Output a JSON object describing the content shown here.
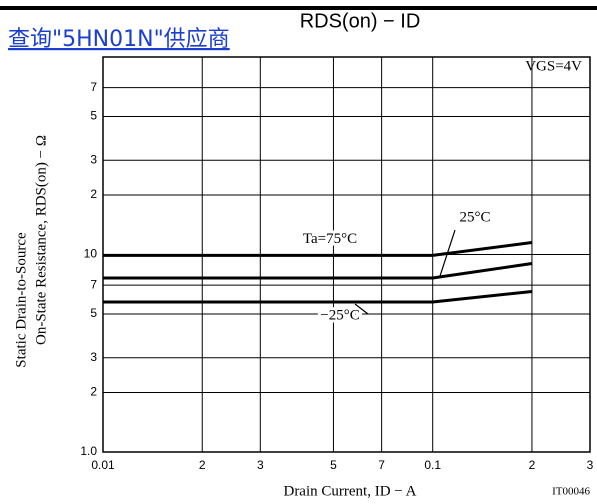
{
  "chart_data": {
    "type": "line",
    "title": "RDS(on) − ID",
    "overlay_link": "查询\"5HN01N\"供应商",
    "condition": "VGS=4V",
    "x_label": "Drain Current, ID − A",
    "y_label": [
      "Static Drain-to-Source",
      "On-State Resistance, RDS(on) − Ω"
    ],
    "figure_code": "IT00046",
    "log_x": true,
    "log_y": true,
    "grid": true,
    "xlim": [
      0.01,
      0.3
    ],
    "ylim": [
      1,
      100
    ],
    "xticks": [
      0.01,
      {
        "value": 0.02,
        "label": "2"
      },
      {
        "value": 0.03,
        "label": "3"
      },
      {
        "value": 0.05,
        "label": "5"
      },
      {
        "value": 0.07,
        "label": "7"
      },
      0.1,
      {
        "value": 0.2,
        "label": "2"
      },
      {
        "value": 0.3,
        "label": "3"
      }
    ],
    "yticks": [
      {
        "value": 1,
        "label": "1.0"
      },
      2,
      3,
      5,
      7,
      10,
      {
        "value": 20,
        "label": "2"
      },
      {
        "value": 30,
        "label": "3"
      },
      {
        "value": 50,
        "label": "5"
      },
      {
        "value": 70,
        "label": "7"
      }
    ],
    "x": [
      0.01,
      0.1,
      0.2
    ],
    "series": [
      {
        "name": "Ta=75°C",
        "color": "#000000",
        "values": [
          9.9,
          9.9,
          11.5
        ]
      },
      {
        "name": "25°C",
        "color": "#000000",
        "values": [
          7.6,
          7.6,
          9.0
        ]
      },
      {
        "name": "−25°C",
        "color": "#000000",
        "values": [
          5.75,
          5.75,
          6.5
        ]
      }
    ]
  }
}
